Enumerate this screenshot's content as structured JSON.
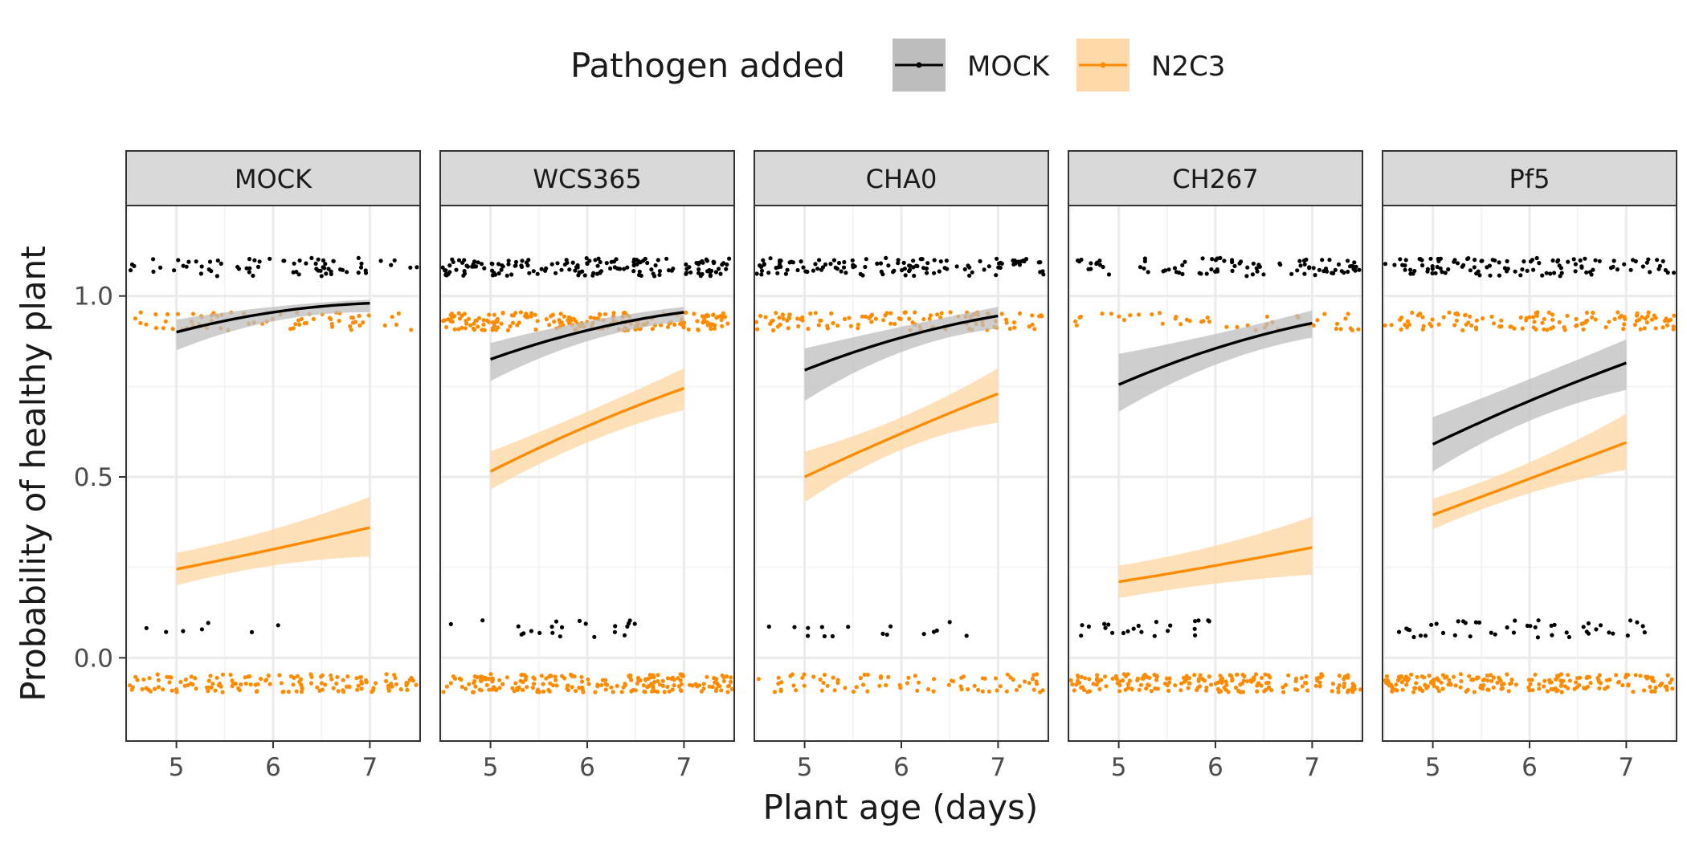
{
  "chart_data": {
    "type": "line",
    "facets": [
      "MOCK",
      "WCS365",
      "CHA0",
      "CH267",
      "Pf5"
    ],
    "xlabel": "Plant age (days)",
    "ylabel": "Probability of healthy plant",
    "xticks": [
      5,
      6,
      7
    ],
    "yticks": [
      0.0,
      0.5,
      1.0
    ],
    "ytick_labels": [
      "0.0",
      "0.5",
      "1.0"
    ],
    "xlim": [
      4.48,
      7.52
    ],
    "ylim": [
      -0.23,
      1.25
    ],
    "grid": true,
    "legend": {
      "title": "Pathogen added",
      "placement": "top",
      "entries": [
        "MOCK",
        "N2C3"
      ]
    },
    "colors": {
      "MOCK": "#000000",
      "N2C3": "#ff8c00",
      "MOCK_band": "#bdbdbd",
      "N2C3_band": "#ffd9a8",
      "strip": "#d9d9d9"
    },
    "series": [
      {
        "name": "MOCK",
        "facet": "MOCK",
        "x": [
          5,
          6,
          7
        ],
        "y": [
          0.9,
          0.955,
          0.98
        ],
        "lower": [
          0.85,
          0.93,
          0.955
        ],
        "upper": [
          0.935,
          0.97,
          0.99
        ]
      },
      {
        "name": "N2C3",
        "facet": "MOCK",
        "x": [
          5,
          6,
          7
        ],
        "y": [
          0.245,
          0.3,
          0.36
        ],
        "lower": [
          0.2,
          0.255,
          0.28
        ],
        "upper": [
          0.29,
          0.355,
          0.445
        ]
      },
      {
        "name": "MOCK",
        "facet": "WCS365",
        "x": [
          5,
          6,
          7
        ],
        "y": [
          0.825,
          0.905,
          0.955
        ],
        "lower": [
          0.765,
          0.875,
          0.93
        ],
        "upper": [
          0.87,
          0.93,
          0.97
        ]
      },
      {
        "name": "N2C3",
        "facet": "WCS365",
        "x": [
          5,
          6,
          7
        ],
        "y": [
          0.515,
          0.64,
          0.745
        ],
        "lower": [
          0.465,
          0.595,
          0.685
        ],
        "upper": [
          0.57,
          0.68,
          0.8
        ]
      },
      {
        "name": "MOCK",
        "facet": "CHA0",
        "x": [
          5,
          6,
          7
        ],
        "y": [
          0.795,
          0.885,
          0.945
        ],
        "lower": [
          0.71,
          0.845,
          0.91
        ],
        "upper": [
          0.855,
          0.915,
          0.97
        ]
      },
      {
        "name": "N2C3",
        "facet": "CHA0",
        "x": [
          5,
          6,
          7
        ],
        "y": [
          0.5,
          0.62,
          0.73
        ],
        "lower": [
          0.43,
          0.575,
          0.65
        ],
        "upper": [
          0.57,
          0.665,
          0.8
        ]
      },
      {
        "name": "MOCK",
        "facet": "CH267",
        "x": [
          5,
          6,
          7
        ],
        "y": [
          0.755,
          0.855,
          0.925
        ],
        "lower": [
          0.68,
          0.81,
          0.885
        ],
        "upper": [
          0.84,
          0.895,
          0.96
        ]
      },
      {
        "name": "N2C3",
        "facet": "CH267",
        "x": [
          5,
          6,
          7
        ],
        "y": [
          0.21,
          0.255,
          0.305
        ],
        "lower": [
          0.165,
          0.205,
          0.23
        ],
        "upper": [
          0.255,
          0.31,
          0.39
        ]
      },
      {
        "name": "MOCK",
        "facet": "Pf5",
        "x": [
          5,
          6,
          7
        ],
        "y": [
          0.59,
          0.71,
          0.815
        ],
        "lower": [
          0.515,
          0.655,
          0.74
        ],
        "upper": [
          0.665,
          0.77,
          0.88
        ]
      },
      {
        "name": "N2C3",
        "facet": "Pf5",
        "x": [
          5,
          6,
          7
        ],
        "y": [
          0.395,
          0.495,
          0.595
        ],
        "lower": [
          0.355,
          0.455,
          0.52
        ],
        "upper": [
          0.44,
          0.54,
          0.675
        ]
      }
    ],
    "jitter_points": [
      {
        "facet": "MOCK",
        "series": "MOCK",
        "y_center": 1.08,
        "n": 70,
        "xmin": 4.5,
        "xmax": 7.5
      },
      {
        "facet": "MOCK",
        "series": "MOCK",
        "y_center": 0.08,
        "n": 7,
        "xmin": 4.5,
        "xmax": 6.1
      },
      {
        "facet": "MOCK",
        "series": "N2C3",
        "y_center": 0.93,
        "n": 70,
        "xmin": 4.5,
        "xmax": 7.5
      },
      {
        "facet": "MOCK",
        "series": "N2C3",
        "y_center": -0.07,
        "n": 140,
        "xmin": 4.5,
        "xmax": 7.5
      },
      {
        "facet": "WCS365",
        "series": "MOCK",
        "y_center": 1.08,
        "n": 160,
        "xmin": 4.5,
        "xmax": 7.5
      },
      {
        "facet": "WCS365",
        "series": "MOCK",
        "y_center": 0.08,
        "n": 22,
        "xmin": 4.5,
        "xmax": 6.5
      },
      {
        "facet": "WCS365",
        "series": "N2C3",
        "y_center": 0.93,
        "n": 200,
        "xmin": 4.5,
        "xmax": 7.5
      },
      {
        "facet": "WCS365",
        "series": "N2C3",
        "y_center": -0.07,
        "n": 200,
        "xmin": 4.5,
        "xmax": 7.5
      },
      {
        "facet": "CHA0",
        "series": "MOCK",
        "y_center": 1.08,
        "n": 120,
        "xmin": 4.5,
        "xmax": 7.5
      },
      {
        "facet": "CHA0",
        "series": "MOCK",
        "y_center": 0.08,
        "n": 16,
        "xmin": 4.6,
        "xmax": 6.9
      },
      {
        "facet": "CHA0",
        "series": "N2C3",
        "y_center": 0.93,
        "n": 110,
        "xmin": 4.5,
        "xmax": 7.5
      },
      {
        "facet": "CHA0",
        "series": "N2C3",
        "y_center": -0.07,
        "n": 80,
        "xmin": 4.5,
        "xmax": 7.5
      },
      {
        "facet": "CH267",
        "series": "MOCK",
        "y_center": 1.08,
        "n": 90,
        "xmin": 4.5,
        "xmax": 7.5
      },
      {
        "facet": "CH267",
        "series": "MOCK",
        "y_center": 0.08,
        "n": 22,
        "xmin": 4.5,
        "xmax": 6.0
      },
      {
        "facet": "CH267",
        "series": "N2C3",
        "y_center": 0.93,
        "n": 45,
        "xmin": 4.5,
        "xmax": 7.5
      },
      {
        "facet": "CH267",
        "series": "N2C3",
        "y_center": -0.07,
        "n": 190,
        "xmin": 4.5,
        "xmax": 7.5
      },
      {
        "facet": "Pf5",
        "series": "MOCK",
        "y_center": 1.08,
        "n": 110,
        "xmin": 4.5,
        "xmax": 7.5
      },
      {
        "facet": "Pf5",
        "series": "MOCK",
        "y_center": 0.08,
        "n": 45,
        "xmin": 4.5,
        "xmax": 7.3
      },
      {
        "facet": "Pf5",
        "series": "N2C3",
        "y_center": 0.93,
        "n": 120,
        "xmin": 4.5,
        "xmax": 7.5
      },
      {
        "facet": "Pf5",
        "series": "N2C3",
        "y_center": -0.07,
        "n": 200,
        "xmin": 4.5,
        "xmax": 7.5
      }
    ]
  }
}
